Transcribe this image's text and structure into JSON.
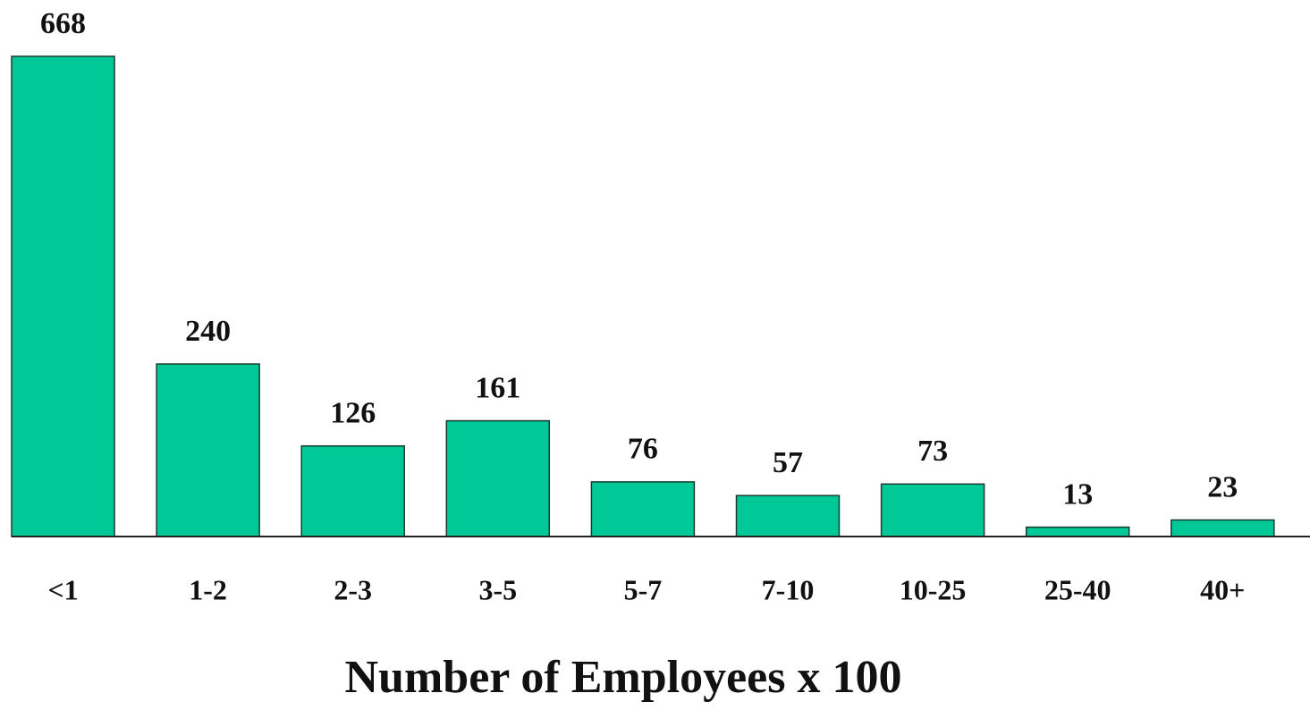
{
  "chart_data": {
    "type": "bar",
    "x_label": "Number of Employees x 100",
    "categories": [
      "<1",
      "1-2",
      "2-3",
      "3-5",
      "5-7",
      "7-10",
      "10-25",
      "25-40",
      "40+"
    ],
    "values": [
      668,
      240,
      126,
      161,
      76,
      57,
      73,
      13,
      23
    ],
    "color": "#00c896"
  }
}
